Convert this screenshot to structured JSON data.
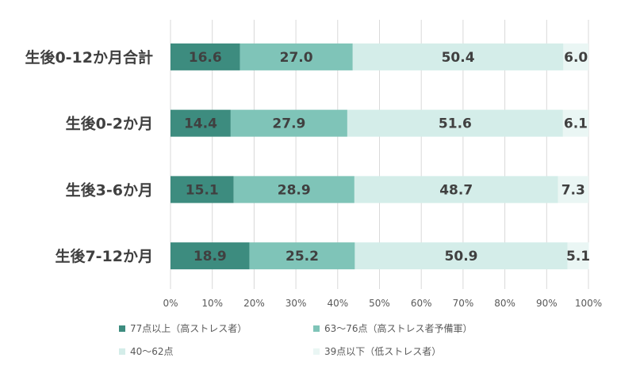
{
  "chart_data": {
    "type": "bar",
    "orientation": "horizontal",
    "stacked": true,
    "categories": [
      "生後0-12か月合計",
      "生後0-2か月",
      "生後3-6か月",
      "生後7-12か月"
    ],
    "series": [
      {
        "name": "77点以上（高ストレス者）",
        "values": [
          16.6,
          14.4,
          15.1,
          18.9
        ],
        "color": "#3d8c7f"
      },
      {
        "name": "63〜76点（高ストレス者予備軍）",
        "values": [
          27.0,
          27.9,
          28.9,
          25.2
        ],
        "color": "#7fc4b8"
      },
      {
        "name": "40〜62点",
        "values": [
          50.4,
          51.6,
          48.7,
          50.9
        ],
        "color": "#d4ede9"
      },
      {
        "name": "39点以下（低ストレス者）",
        "values": [
          6.0,
          6.1,
          7.3,
          5.1
        ],
        "color": "#eaf6f4"
      }
    ],
    "xlim": [
      0,
      100
    ],
    "xticks": [
      "0%",
      "10%",
      "20%",
      "30%",
      "40%",
      "50%",
      "60%",
      "70%",
      "80%",
      "90%",
      "100%"
    ],
    "grid": true,
    "legend_position": "bottom",
    "title": "",
    "xlabel": "",
    "ylabel": ""
  }
}
